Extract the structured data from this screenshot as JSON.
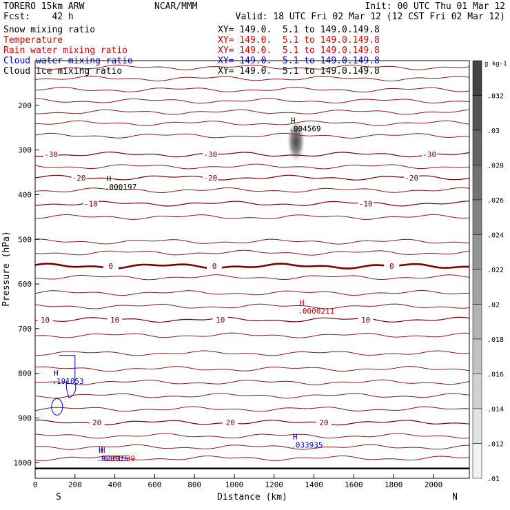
{
  "header": {
    "model_line": "TORERO  15km ARW",
    "center": "NCAR/MMM",
    "init_line": "Init: 00 UTC Thu 01 Mar 12",
    "fcst_line": "Fcst:    42 h",
    "valid_line": "Valid: 18 UTC Fri 02 Mar 12 (12 CST Fri 02 Mar 12)"
  },
  "legend": [
    {
      "label": "Snow mixing ratio",
      "xy": "XY= 149.0.  5.1 to 149.0.149.8",
      "color": "#000000"
    },
    {
      "label": "Temperature",
      "xy": "XY= 149.0.  5.1 to 149.0.149.8",
      "color": "#cc0000"
    },
    {
      "label": "Rain water mixing ratio",
      "xy": "XY= 149.0.  5.1 to 149.0.149.8",
      "color": "#cc0000"
    },
    {
      "label": "Cloud water mixing ratio",
      "xy": "XY= 149.0.  5.1 to 149.0.149.8",
      "color": "#0000cc"
    },
    {
      "label": "Cloud ice mixing ratio",
      "xy": "XY= 149.0.  5.1 to 149.0.149.8",
      "color": "#000000"
    }
  ],
  "chart_data": {
    "type": "contour-cross-section",
    "xlabel": "Distance (km)",
    "ylabel": "Pressure (hPa)",
    "xlim": [
      0,
      2180
    ],
    "ylim": [
      1035,
      100
    ],
    "x_ticks": [
      "0",
      "200",
      "400",
      "600",
      "800",
      "1000",
      "1200",
      "1400",
      "1600",
      "1800",
      "2000"
    ],
    "y_ticks": [
      "200",
      "300",
      "400",
      "500",
      "600",
      "700",
      "800",
      "900",
      "1000"
    ],
    "end_labels": {
      "left": "S",
      "right": "N"
    },
    "temperature_contours": [
      {
        "value": -30,
        "label": "-30",
        "label_x": [
          80,
          880,
          1980
        ],
        "pressure": 310
      },
      {
        "value": -20,
        "label": "-20",
        "label_x": [
          220,
          880,
          1890
        ],
        "pressure": 362
      },
      {
        "value": -10,
        "label": "-10",
        "label_x": [
          280,
          1660
        ],
        "pressure": 420
      },
      {
        "value": 0,
        "label": "0",
        "label_x": [
          380,
          900,
          1790
        ],
        "pressure": 560
      },
      {
        "value": 10,
        "label": "10",
        "label_x": [
          50,
          400,
          930,
          1660
        ],
        "pressure": 680
      },
      {
        "value": 20,
        "label": "20",
        "label_x": [
          310,
          980,
          1450
        ],
        "pressure": 910
      }
    ],
    "extra_isotherm_pressures": [
      115,
      140,
      165,
      190,
      215,
      240,
      268,
      337,
      390,
      450,
      505,
      530,
      585,
      620,
      650,
      715,
      755,
      790,
      820,
      850,
      880,
      940,
      965,
      990
    ],
    "maxima": [
      {
        "field": "Cloud ice mixing ratio",
        "symbol": "H",
        "value": ".004569",
        "x": 1295,
        "p": 240,
        "color": "#000000"
      },
      {
        "field": "Snow mixing ratio",
        "symbol": "H",
        "value": ".000197",
        "x": 370,
        "p": 370,
        "color": "#000000"
      },
      {
        "field": "Rain water mixing ratio",
        "symbol": "H",
        "value": ".0000211",
        "x": 1340,
        "p": 648,
        "color": "#cc0000"
      },
      {
        "field": "Cloud water mixing ratio",
        "symbol": "H",
        "value": ".191053",
        "x": 105,
        "p": 805,
        "color": "#0000cc"
      },
      {
        "field": "Cloud water mixing ratio",
        "symbol": "H",
        "value": ".033935",
        "x": 1305,
        "p": 948,
        "color": "#0000cc"
      },
      {
        "field": "Cloud water mixing ratio",
        "symbol": "H",
        "value": ".028915",
        "x": 330,
        "p": 978,
        "color": "#0000cc"
      },
      {
        "field": "Rain water mixing ratio",
        "symbol": "H",
        "value": ".0261539",
        "x": 340,
        "p": 978,
        "color": "#cc0000"
      }
    ],
    "colorbar": {
      "unit": "g kg-1",
      "range": [
        0.01,
        0.034
      ],
      "labels": [
        ".032",
        ".03",
        ".028",
        ".026",
        ".024",
        ".022",
        ".02",
        ".018",
        ".016",
        ".014",
        ".012",
        ".01"
      ],
      "levels": [
        0.034,
        0.032,
        0.03,
        0.028,
        0.026,
        0.024,
        0.022,
        0.02,
        0.018,
        0.016,
        0.014,
        0.012,
        0.01
      ]
    },
    "cloud_ice_shading": {
      "x": 1310,
      "p_center": 285,
      "max": 0.03
    }
  }
}
